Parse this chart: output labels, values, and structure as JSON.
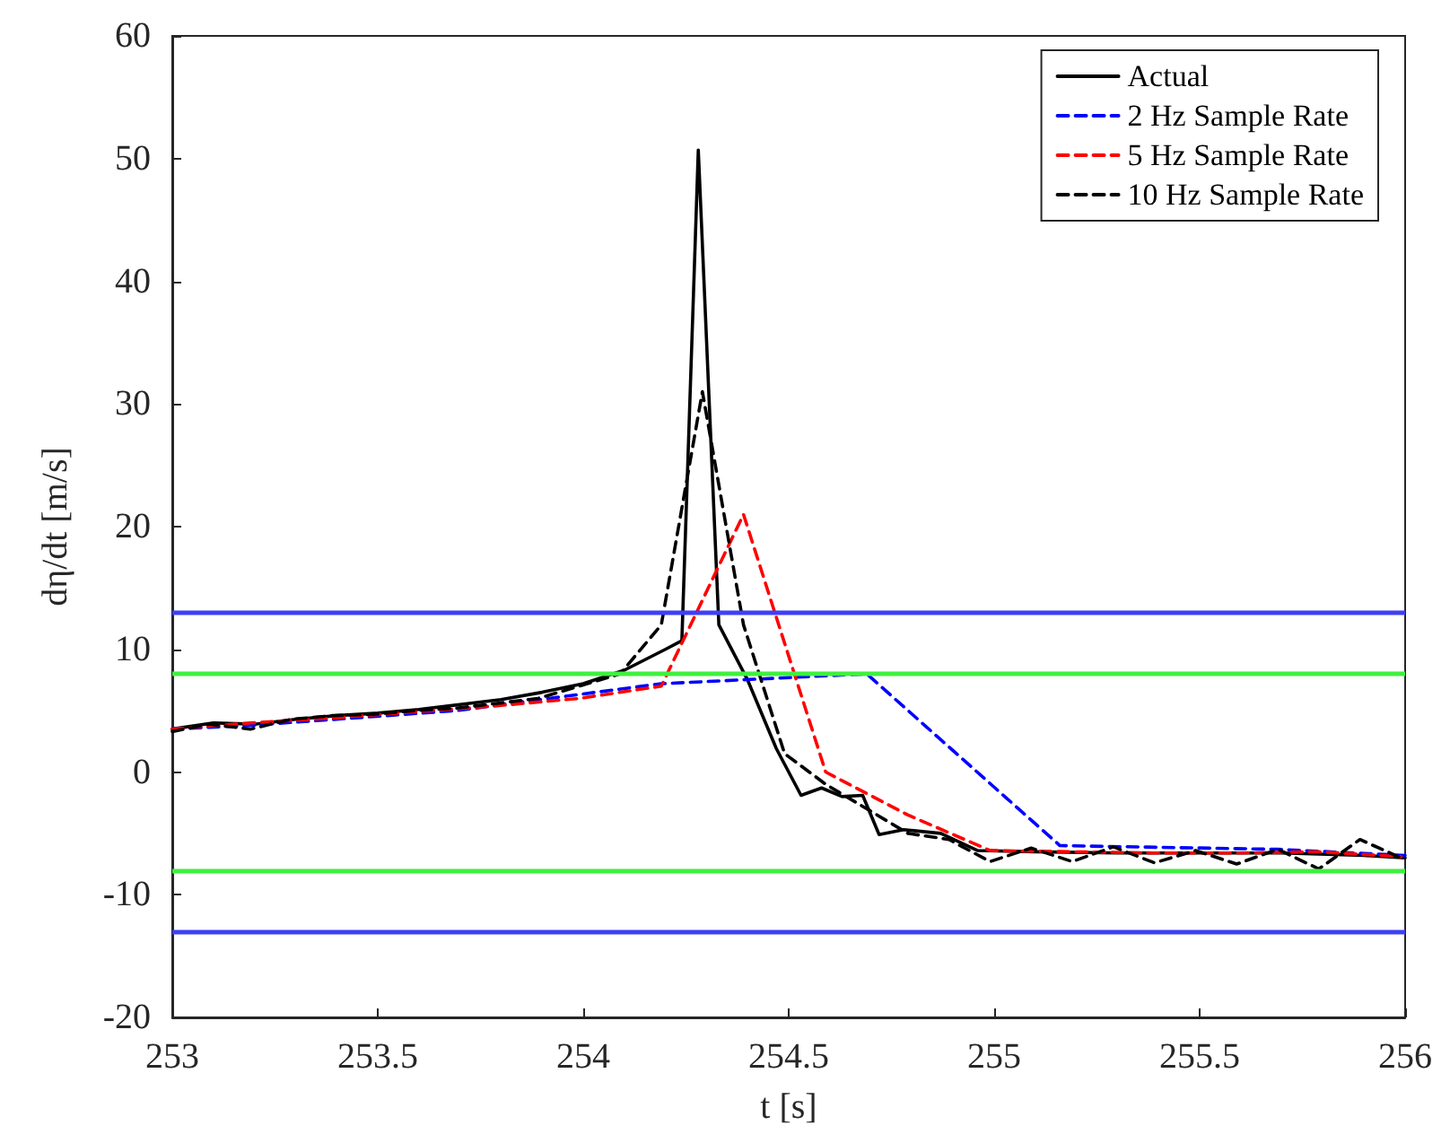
{
  "chart_data": {
    "type": "line",
    "xlabel": "t [s]",
    "ylabel": "dη/dt [m/s]",
    "xlim": [
      253,
      256
    ],
    "xticks": [
      253,
      253.5,
      254,
      254.5,
      255,
      255.5,
      256
    ],
    "ylim": [
      -20,
      60
    ],
    "yticks": [
      -20,
      -10,
      0,
      10,
      20,
      30,
      40,
      50,
      60
    ],
    "grid": false,
    "legend": "top right",
    "marker": "none",
    "series": [
      {
        "name": "Actual",
        "color": "#000000",
        "line_style": "solid",
        "x": [
          253,
          253.1,
          253.2,
          253.3,
          253.4,
          253.5,
          253.6,
          253.7,
          253.8,
          253.9,
          254,
          254.1,
          254.2,
          254.24,
          254.28,
          254.33,
          254.4,
          254.47,
          254.53,
          254.58,
          254.63,
          254.68,
          254.72,
          254.78,
          254.87,
          254.96,
          255.1,
          255.3,
          255.5,
          255.7,
          255.9,
          256
        ],
        "values": [
          3.5,
          4,
          3.9,
          4.3,
          4.6,
          4.8,
          5.1,
          5.5,
          5.9,
          6.5,
          7.2,
          8.3,
          10,
          10.7,
          50.7,
          12,
          7.5,
          1.9,
          -1.9,
          -1.3,
          -2,
          -1.9,
          -5.1,
          -4.7,
          -5,
          -6.4,
          -6.5,
          -6.6,
          -6.6,
          -6.6,
          -6.8,
          -7
        ]
      },
      {
        "name": "2 Hz Sample Rate",
        "color": "#0000ff",
        "line_style": "dashed",
        "x": [
          253,
          253.19,
          253.69,
          254.19,
          254.69,
          255.16,
          255.69,
          256
        ],
        "values": [
          3.5,
          3.8,
          5,
          7.2,
          8,
          -6,
          -6.3,
          -6.8
        ]
      },
      {
        "name": "5 Hz Sample Rate",
        "color": "#ff0000",
        "line_style": "dashed",
        "x": [
          253,
          253.19,
          253.39,
          253.59,
          253.79,
          253.99,
          254.19,
          254.39,
          254.59,
          254.79,
          254.99,
          255.19,
          255.39,
          255.59,
          255.79,
          255.99
        ],
        "values": [
          3.5,
          4,
          4.4,
          4.9,
          5.4,
          6,
          7,
          21,
          0,
          -3.5,
          -6.4,
          -6.5,
          -6.6,
          -6.6,
          -6.5,
          -6.9
        ]
      },
      {
        "name": "10 Hz Sample Rate",
        "color": "#000000",
        "line_style": "dashed",
        "x": [
          253,
          253.09,
          253.19,
          253.29,
          253.39,
          253.49,
          253.59,
          253.69,
          253.79,
          253.89,
          253.99,
          254.09,
          254.19,
          254.29,
          254.39,
          254.49,
          254.59,
          254.69,
          254.79,
          254.89,
          254.99,
          255.09,
          255.19,
          255.29,
          255.39,
          255.49,
          255.59,
          255.69,
          255.79,
          255.89,
          255.99
        ],
        "values": [
          3.3,
          3.9,
          3.5,
          4.3,
          4.6,
          4.7,
          5,
          5.2,
          5.6,
          6,
          7,
          8,
          12,
          31,
          12,
          1.5,
          -1,
          -3,
          -5,
          -5.5,
          -7.3,
          -6.2,
          -7.3,
          -6.1,
          -7.4,
          -6.4,
          -7.5,
          -6.3,
          -7.9,
          -5.5,
          -7
        ]
      }
    ],
    "ref_lines": [
      {
        "axis": "y",
        "value": 13,
        "color": "#3f3ff5"
      },
      {
        "axis": "y",
        "value": 8,
        "color": "#3ff03f"
      },
      {
        "axis": "y",
        "value": -8,
        "color": "#3ff03f"
      },
      {
        "axis": "y",
        "value": -13,
        "color": "#3f3ff5"
      }
    ]
  }
}
